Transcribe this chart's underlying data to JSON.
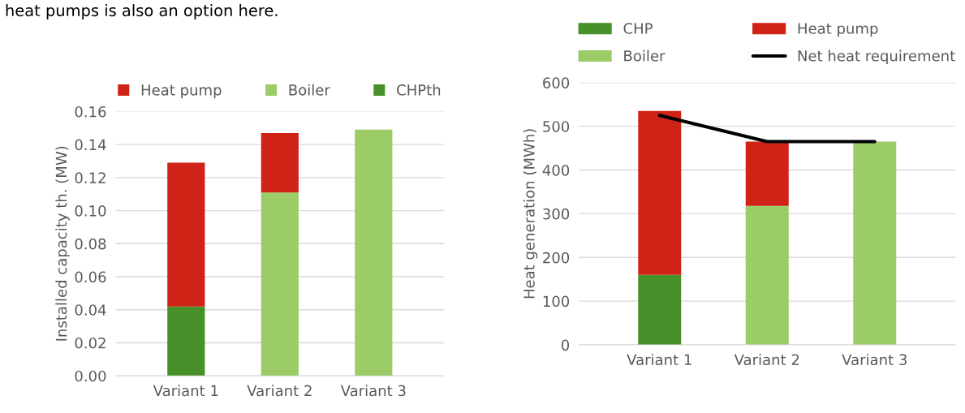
{
  "chart_data": [
    {
      "type": "bar",
      "stacked": true,
      "categories": [
        "Variant 1",
        "Variant 2",
        "Variant 3"
      ],
      "ylabel": "Installed capacity th. (MW)",
      "ylim": [
        0,
        0.16
      ],
      "yticks": [
        {
          "value": 0,
          "label": "0.00"
        },
        {
          "value": 0.02,
          "label": "0.02"
        },
        {
          "value": 0.04,
          "label": "0.04"
        },
        {
          "value": 0.06,
          "label": "0.06"
        },
        {
          "value": 0.08,
          "label": "0.08"
        },
        {
          "value": 0.1,
          "label": "0.10"
        },
        {
          "value": 0.12,
          "label": "0.12"
        },
        {
          "value": 0.14,
          "label": "0.14"
        },
        {
          "value": 0.16,
          "label": "0.16"
        }
      ],
      "grid": "y",
      "legend": "top",
      "annotations": [
        "heat pumps is also an option here."
      ],
      "series": [
        {
          "name": "CHPth",
          "color": "#48902a",
          "values": [
            0.042,
            null,
            null
          ]
        },
        {
          "name": "Boiler",
          "color": "#9bcc67",
          "values": [
            null,
            0.111,
            0.149
          ]
        },
        {
          "name": "Heat pump",
          "color": "#d02318",
          "values": [
            0.087,
            0.036,
            null
          ]
        }
      ]
    },
    {
      "type": "bar",
      "stacked": true,
      "categories": [
        "Variant 1",
        "Variant 2",
        "Variant 3"
      ],
      "ylabel": "Heat generation (MWh)",
      "ylim": [
        0,
        600
      ],
      "yticks": [
        0,
        100,
        200,
        300,
        400,
        500,
        600
      ],
      "grid": "y",
      "legend": "top",
      "series": [
        {
          "name": "CHP",
          "color": "#48902a",
          "values": [
            160,
            null,
            null
          ]
        },
        {
          "name": "Boiler",
          "color": "#9bcc67",
          "values": [
            null,
            318,
            465
          ]
        },
        {
          "name": "Heat pump",
          "color": "#d02318",
          "values": [
            375,
            147,
            null
          ]
        },
        {
          "name": "Net heat requirement",
          "type": "line",
          "color": "#000000",
          "values": [
            525,
            465,
            465
          ]
        }
      ]
    }
  ]
}
